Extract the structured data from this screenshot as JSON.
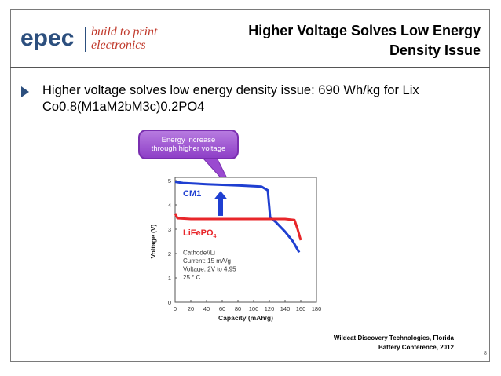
{
  "logo": {
    "brand": "epec",
    "tagline_line1": "build to print",
    "tagline_line2": "electronics"
  },
  "slide": {
    "title_line1": "Higher Voltage Solves Low Energy",
    "title_line2": "Density Issue",
    "bullet_line1": "Higher voltage solves low energy density issue: 690 Wh/kg for Lix",
    "bullet_line2": "Co0.8(M1aM2bM3c)0.2PO4",
    "callout_line1": "Energy increase",
    "callout_line2": "through higher voltage",
    "source_line1": "Wildcat Discovery Technologies, Florida",
    "source_line2": "Battery Conference, 2012",
    "page_number": "8"
  },
  "colors": {
    "brand_blue": "#2c4f7e",
    "brand_red": "#c0392b",
    "cm1": "#1f3fd1",
    "lifepo4": "#e8262a",
    "callout": "#8e3fc7"
  },
  "chart_data": {
    "type": "line",
    "xlabel": "Capacity (mAh/g)",
    "ylabel": "Voltage (V)",
    "xlim": [
      0,
      180
    ],
    "ylim": [
      0,
      5
    ],
    "x_ticks": [
      "0",
      "20",
      "40",
      "60",
      "80",
      "100",
      "120",
      "140",
      "160",
      "180"
    ],
    "y_ticks": [
      "0",
      "1",
      "2",
      "3",
      "4",
      "5"
    ],
    "series": [
      {
        "name": "CM1",
        "color": "#1f3fd1",
        "points": [
          [
            0,
            4.95
          ],
          [
            10,
            4.9
          ],
          [
            40,
            4.85
          ],
          [
            80,
            4.8
          ],
          [
            110,
            4.75
          ],
          [
            118,
            4.6
          ],
          [
            121,
            3.5
          ],
          [
            128,
            3.3
          ],
          [
            140,
            2.9
          ],
          [
            150,
            2.5
          ],
          [
            158,
            2.05
          ]
        ]
      },
      {
        "name": "LiFePO4",
        "name_main": "LiFePO",
        "name_sub": "4",
        "color": "#e8262a",
        "points": [
          [
            0,
            3.65
          ],
          [
            3,
            3.45
          ],
          [
            20,
            3.42
          ],
          [
            80,
            3.42
          ],
          [
            140,
            3.42
          ],
          [
            152,
            3.38
          ],
          [
            156,
            3.0
          ],
          [
            160,
            2.55
          ]
        ]
      }
    ],
    "annotations": [
      "Cathode//Li",
      "Current: 15 mA/g",
      "Voltage: 2V to 4.95",
      "25 ° C"
    ],
    "arrow": "upward arrow between curves (energy increase)",
    "grid": false,
    "legend": "inline labels"
  }
}
